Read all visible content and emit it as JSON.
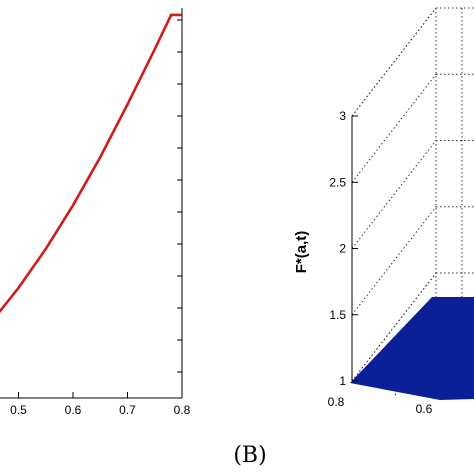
{
  "chart_data": [
    {
      "type": "line",
      "title": "",
      "xlabel": "",
      "ylabel": "",
      "xlim": [
        0.4,
        0.8
      ],
      "x_ticks": [
        0.5,
        0.6,
        0.7,
        0.8
      ],
      "x_tick_labels": [
        "0.5",
        "0.6",
        "0.7",
        "0.8"
      ],
      "series": [
        {
          "color": "#d11a1a",
          "x": [
            0.4,
            0.45,
            0.5,
            0.55,
            0.6,
            0.65,
            0.7,
            0.75,
            0.78,
            0.8
          ],
          "y": [
            0.8,
            0.93,
            1.08,
            1.25,
            1.44,
            1.65,
            1.88,
            2.12,
            2.27,
            2.27
          ]
        }
      ],
      "ylim": [
        0.6,
        2.3
      ],
      "grid": false
    },
    {
      "type": "surface",
      "panel_label": "(B)",
      "ylabel": "F*(a,t)",
      "zlim": [
        1,
        3
      ],
      "z_ticks": [
        1,
        1.5,
        2,
        2.5,
        3
      ],
      "z_tick_labels": [
        "1",
        "1.5",
        "2",
        "2.5",
        "3"
      ],
      "a_ticks": [
        0.8,
        0.6
      ],
      "a_tick_labels": [
        "0.8",
        "0.6"
      ],
      "surface_color": "#0b1f99",
      "grid": true
    }
  ]
}
